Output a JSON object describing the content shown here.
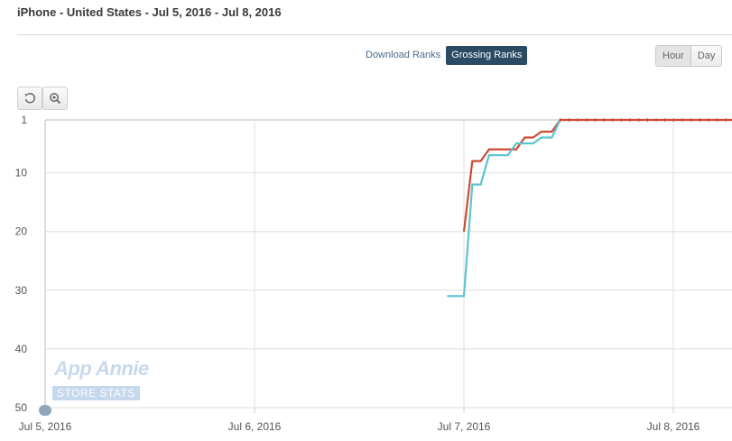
{
  "header": {
    "title": "iPhone - United States - Jul 5, 2016 - Jul 8, 2016"
  },
  "rank_toggle": {
    "download_label": "Download Ranks",
    "grossing_label": "Grossing Ranks",
    "selected": "Grossing Ranks"
  },
  "period_toggle": {
    "hour_label": "Hour",
    "day_label": "Day",
    "selected": "Hour"
  },
  "tools": {
    "reset_icon": "reset-zoom-icon",
    "zoom_icon": "zoom-in-icon"
  },
  "watermark": {
    "title": "App Annie",
    "badge": "STORE STATS"
  },
  "colors": {
    "series_red": "#cc4a33",
    "series_cyan": "#5cc4d0",
    "grid": "#dedede",
    "active_toggle": "#2b4a63"
  },
  "chart_data": {
    "type": "line",
    "y_reversed": true,
    "ylim": [
      1,
      50
    ],
    "y_ticks": [
      1,
      10,
      20,
      30,
      40,
      50
    ],
    "x_ticks": [
      "Jul 5, 2016",
      "Jul 6, 2016",
      "Jul 7, 2016",
      "Jul 8, 2016"
    ],
    "x_range_days": [
      5.0,
      8.28
    ],
    "grid": true,
    "series": [
      {
        "color": "#cc4a33",
        "points": [
          [
            7.0,
            20
          ],
          [
            7.04,
            8
          ],
          [
            7.08,
            8
          ],
          [
            7.12,
            6
          ],
          [
            7.25,
            6
          ],
          [
            7.29,
            4
          ],
          [
            7.33,
            4
          ],
          [
            7.37,
            3
          ],
          [
            7.42,
            3
          ],
          [
            7.46,
            1
          ],
          [
            8.28,
            1
          ]
        ]
      },
      {
        "color": "#5cc4d0",
        "points": [
          [
            6.92,
            31
          ],
          [
            7.0,
            31
          ],
          [
            7.04,
            12
          ],
          [
            7.08,
            12
          ],
          [
            7.12,
            7
          ],
          [
            7.21,
            7
          ],
          [
            7.25,
            5
          ],
          [
            7.33,
            5
          ],
          [
            7.37,
            4
          ],
          [
            7.42,
            4
          ],
          [
            7.46,
            1
          ]
        ]
      }
    ]
  }
}
